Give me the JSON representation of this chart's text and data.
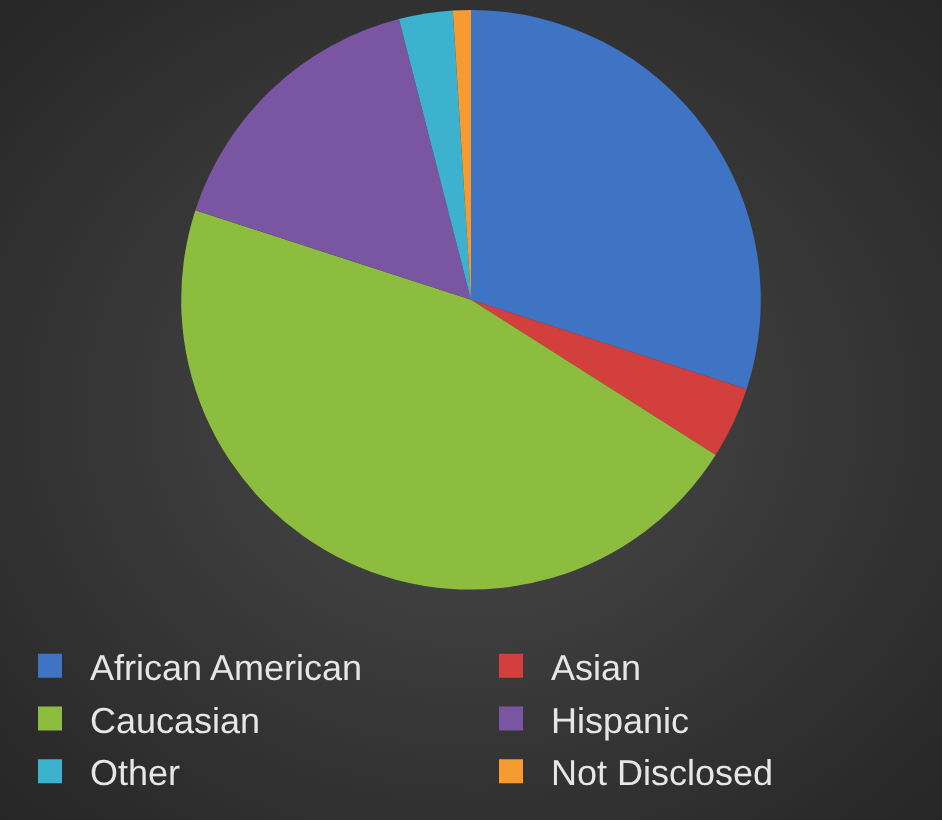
{
  "chart_data": {
    "type": "pie",
    "categories": [
      "African American",
      "Asian",
      "Caucasian",
      "Hispanic",
      "Other",
      "Not Disclosed"
    ],
    "values": [
      30,
      4,
      46,
      16,
      3,
      1
    ],
    "colors": [
      "#3f74c4",
      "#d23f3c",
      "#8dbd3e",
      "#7a55a2",
      "#3cb2cf",
      "#f59b2f"
    ],
    "legend": "bottom"
  }
}
